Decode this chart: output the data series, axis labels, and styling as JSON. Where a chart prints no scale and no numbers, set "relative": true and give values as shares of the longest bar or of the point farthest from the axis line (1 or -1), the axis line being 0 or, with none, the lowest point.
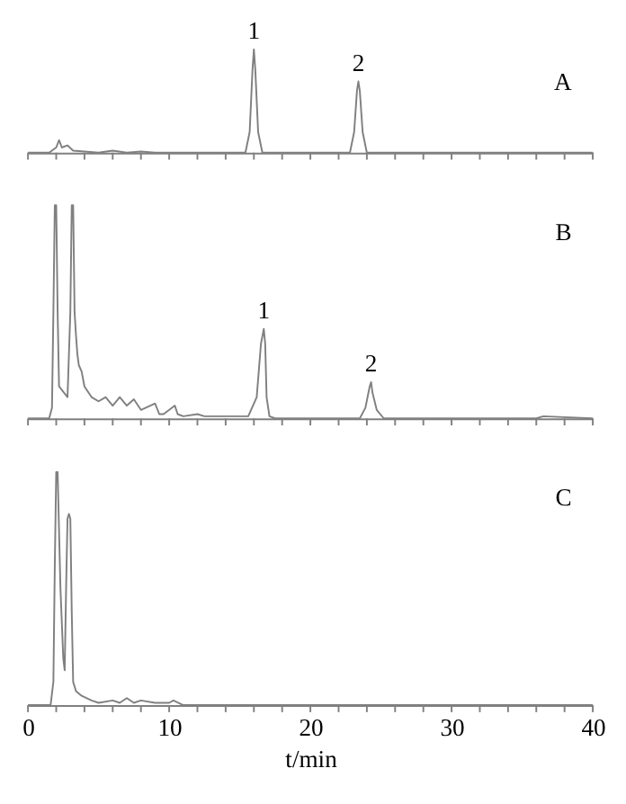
{
  "chart_data": [
    {
      "type": "line",
      "relative": true,
      "xlim": [
        0,
        40
      ],
      "xticks": [
        0,
        {
          "value": 2,
          "label": null
        },
        {
          "value": 4,
          "label": null
        },
        {
          "value": 6,
          "label": null
        },
        {
          "value": 8,
          "label": null
        },
        10,
        {
          "value": 12,
          "label": null
        },
        {
          "value": 14,
          "label": null
        },
        {
          "value": 16,
          "label": null
        },
        {
          "value": 18,
          "label": null
        },
        20,
        {
          "value": 22,
          "label": null
        },
        {
          "value": 24,
          "label": null
        },
        {
          "value": 26,
          "label": null
        },
        {
          "value": 28,
          "label": null
        },
        30,
        {
          "value": 32,
          "label": null
        },
        {
          "value": 34,
          "label": null
        },
        {
          "value": 36,
          "label": null
        },
        {
          "value": 38,
          "label": null
        },
        40
      ],
      "tick_labels": false,
      "grid": false,
      "legend": false,
      "marker": "none",
      "line_style": "solid",
      "series": [
        {
          "color": "#808080",
          "x": [
            0,
            1.5,
            2.0,
            2.2,
            2.4,
            2.8,
            3.2,
            4,
            5,
            6,
            7,
            8,
            9,
            15.4,
            15.7,
            15.9,
            16.0,
            16.1,
            16.3,
            16.6,
            22.8,
            23.1,
            23.3,
            23.4,
            23.5,
            23.7,
            24.0,
            40
          ],
          "values": [
            0,
            0,
            0.05,
            0.12,
            0.05,
            0.07,
            0.02,
            0.01,
            0,
            0.02,
            0,
            0.01,
            0,
            0,
            0.2,
            0.8,
            1,
            0.8,
            0.2,
            0,
            0,
            0.2,
            0.6,
            0.69,
            0.6,
            0.2,
            0,
            0
          ]
        }
      ],
      "annotations": [
        {
          "text": "1",
          "x": 16.0,
          "y": 1
        },
        {
          "text": "2",
          "x": 23.4,
          "y": 0.69
        },
        "A"
      ]
    },
    {
      "type": "line",
      "relative": true,
      "xlim": [
        0,
        40
      ],
      "xticks": [
        0,
        {
          "value": 2,
          "label": null
        },
        {
          "value": 4,
          "label": null
        },
        {
          "value": 6,
          "label": null
        },
        {
          "value": 8,
          "label": null
        },
        10,
        {
          "value": 12,
          "label": null
        },
        {
          "value": 14,
          "label": null
        },
        {
          "value": 16,
          "label": null
        },
        {
          "value": 18,
          "label": null
        },
        20,
        {
          "value": 22,
          "label": null
        },
        {
          "value": 24,
          "label": null
        },
        {
          "value": 26,
          "label": null
        },
        {
          "value": 28,
          "label": null
        },
        30,
        {
          "value": 32,
          "label": null
        },
        {
          "value": 34,
          "label": null
        },
        {
          "value": 36,
          "label": null
        },
        {
          "value": 38,
          "label": null
        },
        40
      ],
      "tick_labels": false,
      "grid": false,
      "legend": false,
      "marker": "none",
      "line_style": "solid",
      "series": [
        {
          "color": "#808080",
          "x": [
            0,
            1.5,
            1.7,
            1.8,
            1.9,
            2.0,
            2.1,
            2.2,
            2.8,
            3.0,
            3.1,
            3.2,
            3.3,
            3.4,
            3.5,
            3.6,
            3.8,
            4.0,
            4.5,
            5.0,
            5.5,
            6.0,
            6.5,
            7.0,
            7.5,
            8.0,
            9.0,
            9.3,
            9.6,
            10.4,
            10.6,
            11,
            12,
            12.5,
            13,
            15.6,
            16.2,
            16.5,
            16.7,
            16.8,
            16.9,
            17.1,
            17.5,
            23.5,
            23.9,
            24.2,
            24.3,
            24.4,
            24.7,
            25.2,
            36,
            36.5,
            40
          ],
          "values": [
            0,
            0,
            0.05,
            0.5,
            1,
            1,
            0.5,
            0.15,
            0.1,
            0.5,
            1,
            1,
            0.5,
            0.39,
            0.3,
            0.25,
            0.22,
            0.15,
            0.1,
            0.08,
            0.1,
            0.06,
            0.1,
            0.06,
            0.09,
            0.04,
            0.07,
            0.02,
            0.02,
            0.06,
            0.02,
            0.01,
            0.02,
            0.01,
            0.01,
            0.01,
            0.1,
            0.35,
            0.42,
            0.35,
            0.1,
            0.01,
            0,
            0,
            0.05,
            0.15,
            0.17,
            0.12,
            0.04,
            0,
            0,
            0.01,
            0
          ]
        }
      ],
      "annotations": [
        {
          "text": "1",
          "x": 16.7,
          "y": 0.42
        },
        {
          "text": "2",
          "x": 24.3,
          "y": 0.17
        },
        "B"
      ]
    },
    {
      "type": "line",
      "relative": true,
      "xlim": [
        0,
        40
      ],
      "xticks": [
        0,
        {
          "value": 2,
          "label": null
        },
        {
          "value": 4,
          "label": null
        },
        {
          "value": 6,
          "label": null
        },
        {
          "value": 8,
          "label": null
        },
        10,
        {
          "value": 12,
          "label": null
        },
        {
          "value": 14,
          "label": null
        },
        {
          "value": 16,
          "label": null
        },
        {
          "value": 18,
          "label": null
        },
        20,
        {
          "value": 22,
          "label": null
        },
        {
          "value": 24,
          "label": null
        },
        {
          "value": 26,
          "label": null
        },
        {
          "value": 28,
          "label": null
        },
        30,
        {
          "value": 32,
          "label": null
        },
        {
          "value": 34,
          "label": null
        },
        {
          "value": 36,
          "label": null
        },
        {
          "value": 38,
          "label": null
        },
        40
      ],
      "tick_labels": "x",
      "grid": false,
      "legend": false,
      "marker": "none",
      "line_style": "solid",
      "xlabel": "t/min",
      "series": [
        {
          "color": "#808080",
          "x": [
            0,
            1.6,
            1.8,
            1.9,
            2.0,
            2.1,
            2.3,
            2.5,
            2.6,
            2.7,
            2.8,
            2.9,
            3.0,
            3.1,
            3.2,
            3.4,
            3.8,
            4.5,
            5,
            6,
            6.5,
            7,
            7.5,
            8,
            9,
            10,
            10.3,
            11,
            40
          ],
          "values": [
            0,
            0,
            0.1,
            0.6,
            1,
            1,
            0.5,
            0.2,
            0.15,
            0.5,
            0.8,
            0.82,
            0.8,
            0.4,
            0.1,
            0.06,
            0.04,
            0.02,
            0.01,
            0.02,
            0.01,
            0.03,
            0.01,
            0.02,
            0.01,
            0.01,
            0.02,
            0,
            0
          ]
        }
      ],
      "annotations": [
        "C"
      ]
    }
  ]
}
